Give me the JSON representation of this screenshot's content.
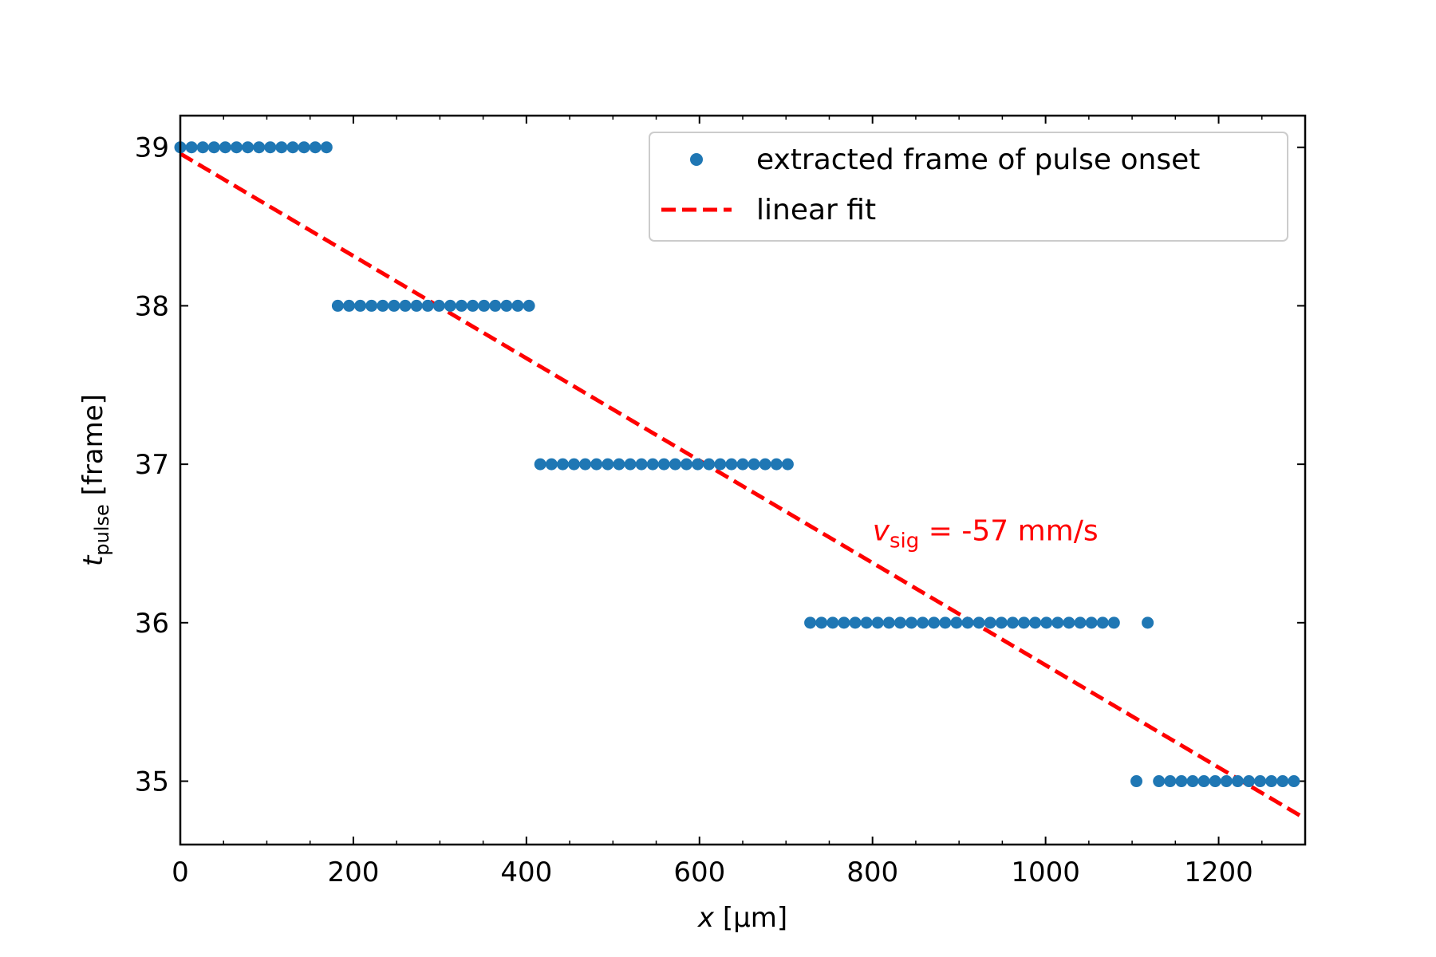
{
  "chart_data": {
    "type": "scatter",
    "xlabel": {
      "symbol": "x",
      "unit": " [µm]"
    },
    "ylabel": {
      "symbol": "t",
      "subscript": "pulse",
      "unit": " [frame]"
    },
    "xlim": [
      0,
      1300
    ],
    "ylim": [
      34.6,
      39.2
    ],
    "x_ticks": [
      0,
      200,
      400,
      600,
      800,
      1000,
      1200
    ],
    "y_ticks": [
      35,
      36,
      37,
      38,
      39
    ],
    "grid": false,
    "legend_position": "top-right",
    "colors": {
      "points": "#1f77b4",
      "fit": "#ff0000"
    },
    "series": [
      {
        "name": "extracted frame of pulse onset",
        "kind": "points",
        "segments": [
          {
            "y": 39,
            "x_start": 0,
            "x_step": 13,
            "count": 14
          },
          {
            "y": 38,
            "x_start": 182,
            "x_step": 13,
            "count": 18
          },
          {
            "y": 37,
            "x_start": 416,
            "x_step": 13,
            "count": 23
          },
          {
            "y": 36,
            "x_start": 728,
            "x_step": 13,
            "count": 28
          },
          {
            "y": 36,
            "x_start": 1118,
            "x_step": 13,
            "count": 1
          },
          {
            "y": 35,
            "x_start": 1105,
            "x_step": 13,
            "count": 1
          },
          {
            "y": 35,
            "x_start": 1131,
            "x_step": 13,
            "count": 13
          }
        ]
      },
      {
        "name": "linear fit",
        "kind": "dashed-line",
        "x": [
          0,
          1295
        ],
        "y": [
          38.96,
          34.78
        ]
      }
    ],
    "annotation": {
      "symbol": "v",
      "subscript": "sig",
      "text": " = -57 mm/s",
      "x": 800,
      "y": 36.52
    }
  }
}
